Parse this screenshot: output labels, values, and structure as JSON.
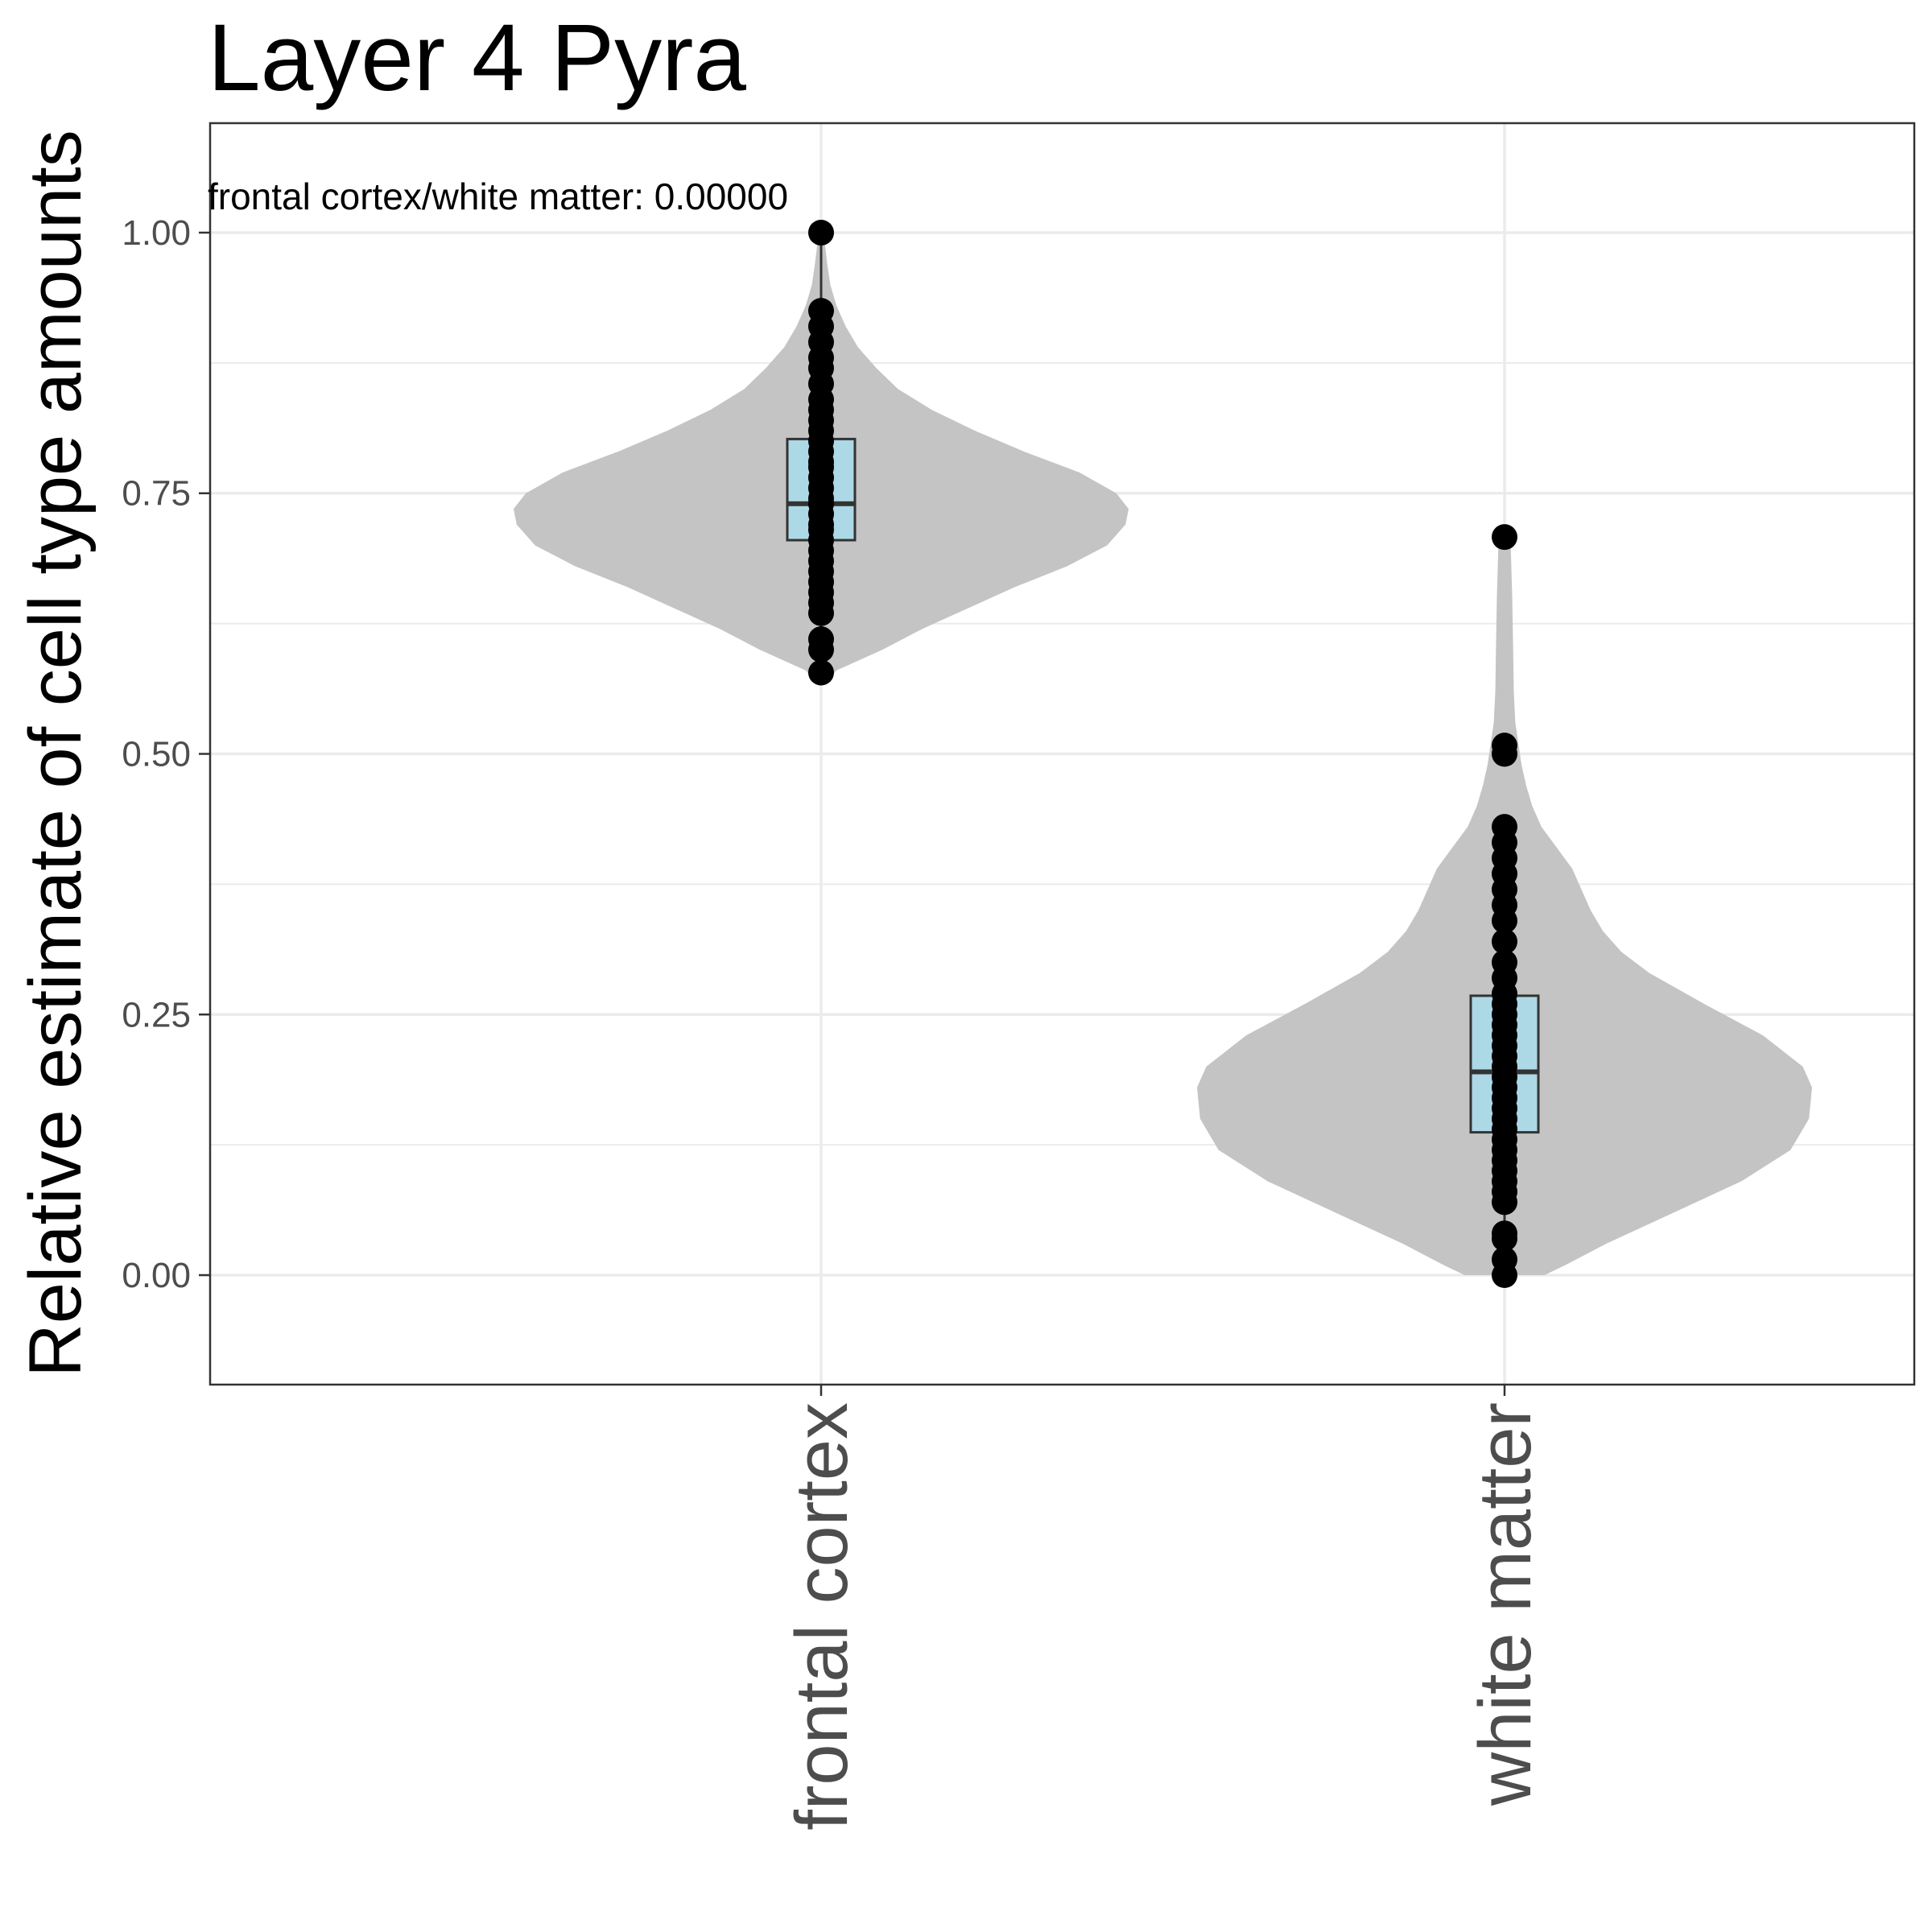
{
  "chart_data": {
    "type": "violin",
    "title": "Layer 4 Pyra",
    "xlabel": "",
    "ylabel": "Relative estimate of cell type amounts",
    "categories": [
      "frontal cortex",
      "white matter"
    ],
    "ylim": [
      -0.105,
      1.105
    ],
    "yticks": [
      0.0,
      0.25,
      0.5,
      0.75,
      1.0
    ],
    "ytick_labels": [
      "0.00",
      "0.25",
      "0.50",
      "0.75",
      "1.00"
    ],
    "grid": true,
    "annotation": "frontal cortex/white matter: 0.00000",
    "colors": {
      "violin_fill": "#c4c4c4",
      "box_fill": "#add8e6",
      "box_stroke": "#333333",
      "points": "#000000",
      "grid": "#ebebeb",
      "panel_border": "#333333"
    },
    "series": [
      {
        "category": "frontal cortex",
        "box": {
          "q1": 0.705,
          "median": 0.74,
          "q3": 0.802,
          "whisker_low": 0.575,
          "whisker_high": 1.0
        },
        "points": [
          1.0,
          0.925,
          0.91,
          0.895,
          0.88,
          0.87,
          0.855,
          0.84,
          0.83,
          0.82,
          0.81,
          0.8,
          0.79,
          0.78,
          0.775,
          0.765,
          0.755,
          0.745,
          0.74,
          0.73,
          0.72,
          0.715,
          0.705,
          0.695,
          0.685,
          0.675,
          0.665,
          0.655,
          0.645,
          0.635,
          0.61,
          0.6,
          0.578
        ],
        "density_y": [
          0.57,
          0.58,
          0.6,
          0.62,
          0.64,
          0.66,
          0.68,
          0.7,
          0.72,
          0.735,
          0.75,
          0.77,
          0.79,
          0.81,
          0.83,
          0.85,
          0.87,
          0.89,
          0.91,
          0.93,
          0.95,
          0.97,
          0.99,
          1.0
        ],
        "density_w": [
          0.02,
          0.05,
          0.2,
          0.33,
          0.48,
          0.63,
          0.8,
          0.93,
          0.99,
          1.0,
          0.96,
          0.84,
          0.66,
          0.5,
          0.36,
          0.25,
          0.18,
          0.12,
          0.08,
          0.05,
          0.03,
          0.02,
          0.012,
          0.01
        ]
      },
      {
        "category": "white matter",
        "box": {
          "q1": 0.137,
          "median": 0.195,
          "q3": 0.268,
          "whisker_low": 0.0,
          "whisker_high": 0.43
        },
        "points": [
          0.708,
          0.508,
          0.5,
          0.43,
          0.415,
          0.4,
          0.385,
          0.37,
          0.355,
          0.34,
          0.32,
          0.3,
          0.285,
          0.27,
          0.26,
          0.25,
          0.24,
          0.23,
          0.22,
          0.21,
          0.2,
          0.19,
          0.18,
          0.17,
          0.16,
          0.15,
          0.14,
          0.13,
          0.12,
          0.11,
          0.1,
          0.09,
          0.08,
          0.07,
          0.04,
          0.035,
          0.015,
          0.0
        ],
        "density_y": [
          0.0,
          0.01,
          0.03,
          0.06,
          0.09,
          0.12,
          0.15,
          0.18,
          0.2,
          0.23,
          0.26,
          0.29,
          0.31,
          0.33,
          0.35,
          0.37,
          0.39,
          0.41,
          0.43,
          0.45,
          0.47,
          0.49,
          0.51,
          0.53,
          0.56,
          0.6,
          0.65,
          0.7
        ],
        "density_w": [
          0.13,
          0.2,
          0.33,
          0.55,
          0.77,
          0.93,
          0.99,
          1.0,
          0.97,
          0.84,
          0.65,
          0.47,
          0.38,
          0.32,
          0.28,
          0.25,
          0.22,
          0.17,
          0.12,
          0.09,
          0.07,
          0.055,
          0.045,
          0.035,
          0.03,
          0.028,
          0.025,
          0.02
        ]
      }
    ]
  }
}
